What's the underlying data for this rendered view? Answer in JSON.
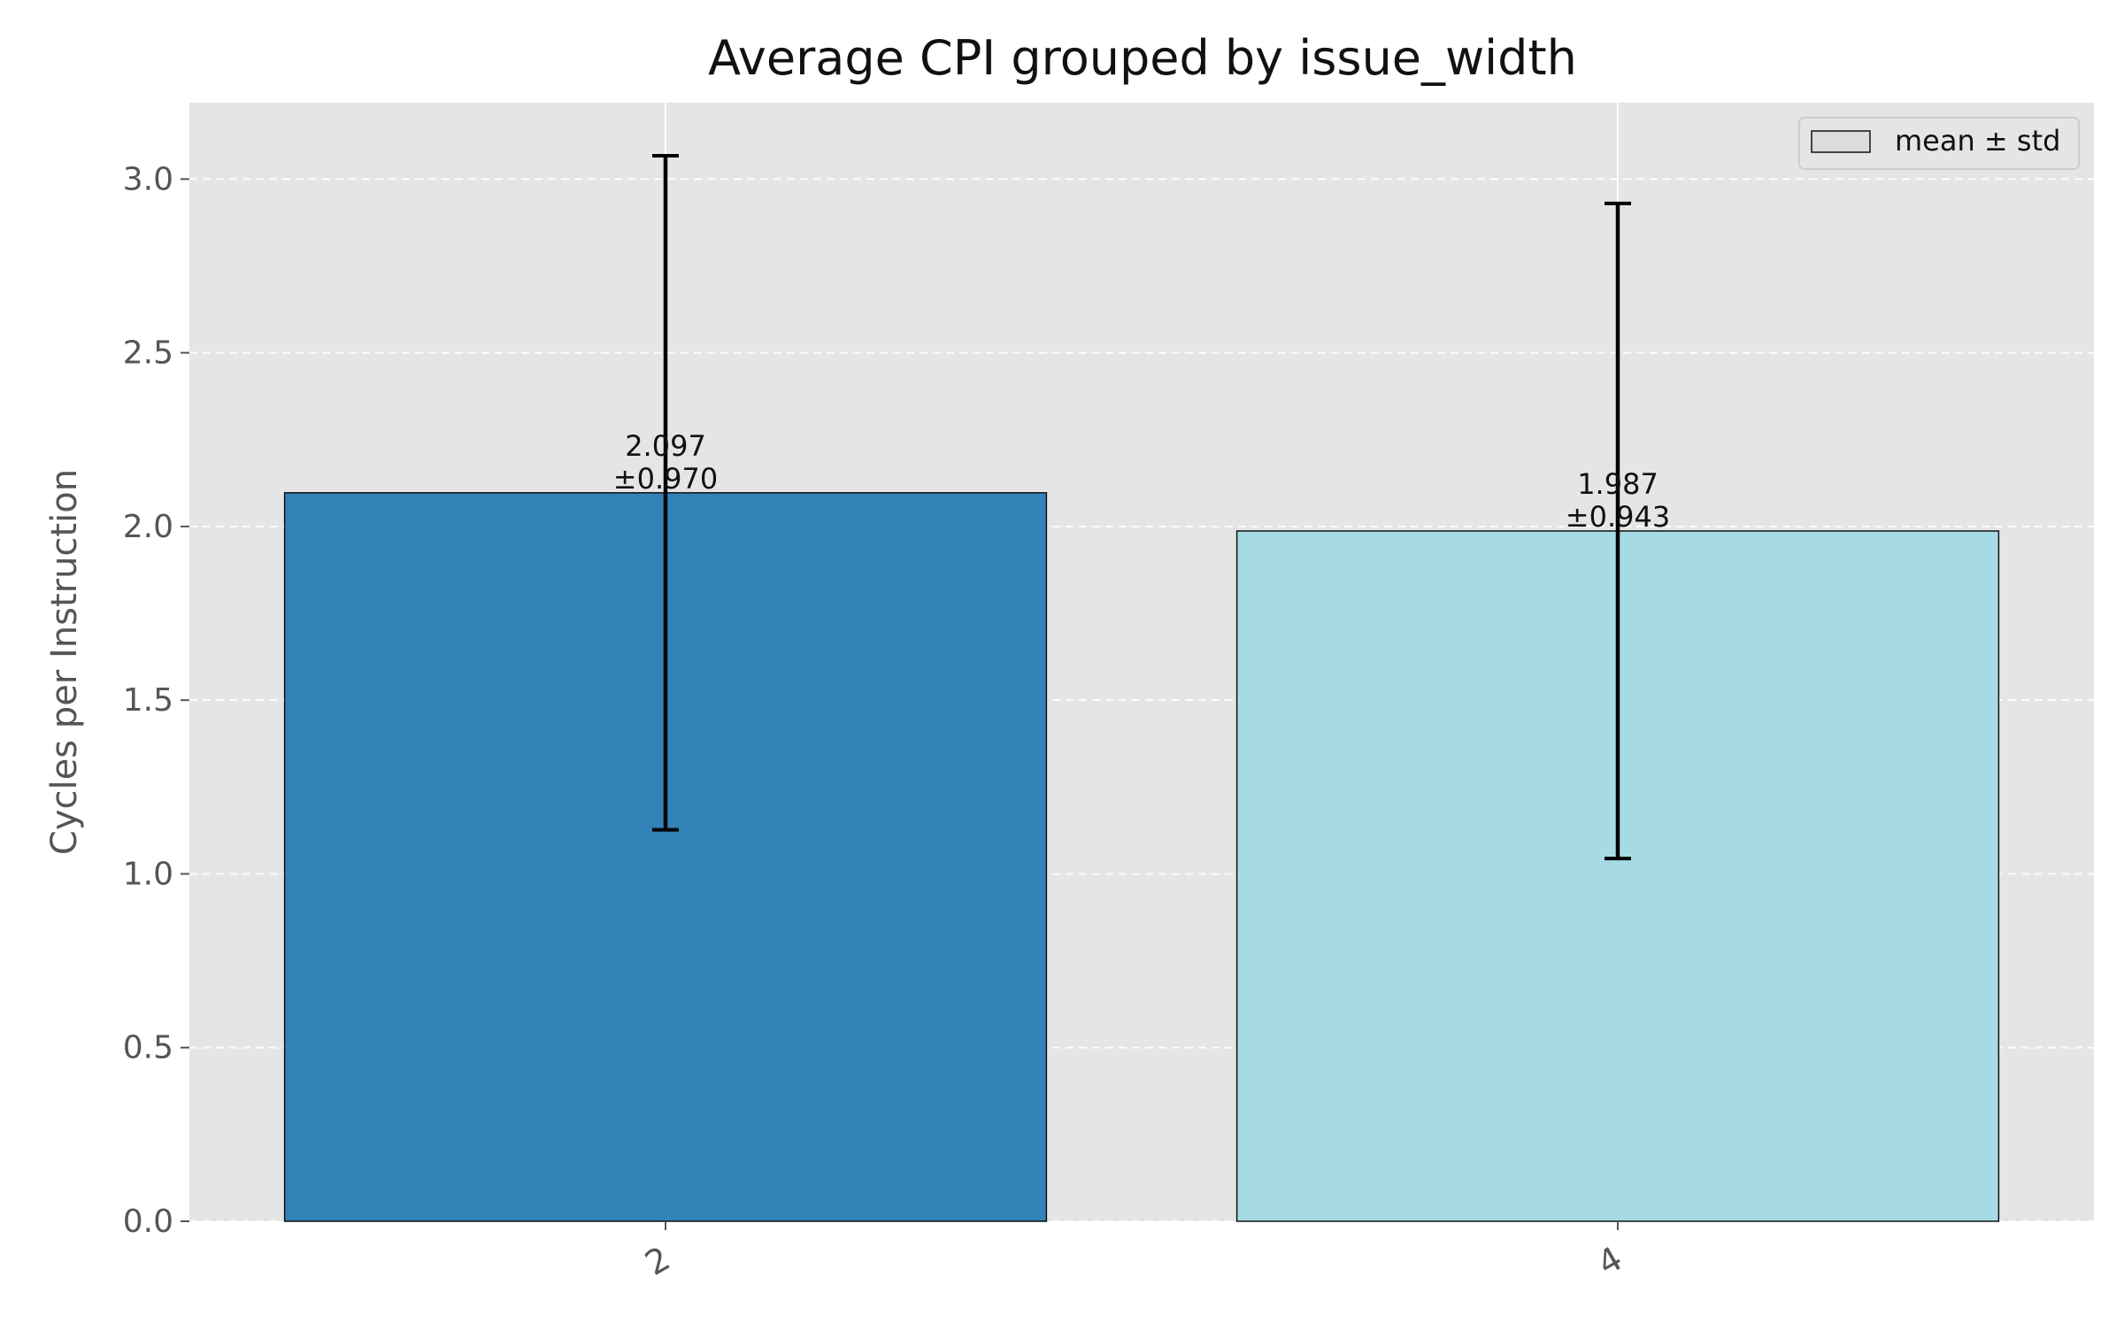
{
  "chart_data": {
    "type": "bar",
    "title": "Average CPI grouped by issue_width",
    "xlabel": "",
    "ylabel": "Cycles per Instruction",
    "categories": [
      "2",
      "4"
    ],
    "values": [
      2.097,
      1.987
    ],
    "errors": [
      0.97,
      0.943
    ],
    "value_labels": [
      "2.097",
      "1.987"
    ],
    "error_labels": [
      "±0.970",
      "±0.943"
    ],
    "bar_colors": [
      "#3282b8",
      "#a6dbe5"
    ],
    "ylim": [
      0,
      3.22
    ],
    "yticks": [
      0.0,
      0.5,
      1.0,
      1.5,
      2.0,
      2.5,
      3.0
    ],
    "ytick_labels": [
      "0.0",
      "0.5",
      "1.0",
      "1.5",
      "2.0",
      "2.5",
      "3.0"
    ],
    "grid": true,
    "legend": {
      "placement": "top-right",
      "entries": [
        {
          "label": "mean ± std",
          "color": "#dcdcdc"
        }
      ]
    },
    "plot_background": "#e5e5e5",
    "grid_color": "#ffffff"
  }
}
